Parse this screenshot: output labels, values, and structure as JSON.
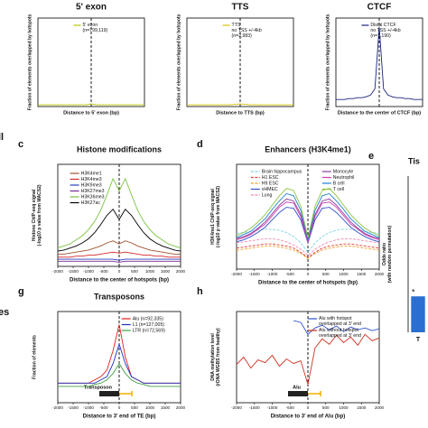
{
  "fragments": [
    "ll",
    "es"
  ],
  "chart_data": [
    {
      "type": "line",
      "title": "5' exon",
      "xlabel": "Distance to 5' exon (bp)",
      "ylabel": "Fraction of elements overlapped by hotspots",
      "x": [
        -2000,
        -1800,
        -1600,
        -1400,
        -1200,
        -1000,
        -800,
        -600,
        -400,
        -200,
        0,
        200,
        400,
        600,
        800,
        1000,
        1200,
        1400,
        1600,
        1800,
        2000
      ],
      "xlim": [
        -2000,
        2000
      ],
      "ylim": [
        0,
        1
      ],
      "vline": 0,
      "series": [
        {
          "name": "5' exon\n(n=799,119)",
          "color": "#b8c400",
          "values": [
            0.02,
            0.02,
            0.02,
            0.02,
            0.02,
            0.02,
            0.02,
            0.02,
            0.02,
            0.02,
            0.03,
            0.02,
            0.02,
            0.02,
            0.02,
            0.02,
            0.02,
            0.02,
            0.02,
            0.02,
            0.02
          ]
        }
      ]
    },
    {
      "type": "line",
      "title": "TTS",
      "xlabel": "Distance to TTS (bp)",
      "ylabel": "Fraction of elements overlapped by hotspots",
      "x": [
        -2000,
        -1800,
        -1600,
        -1400,
        -1200,
        -1000,
        -800,
        -600,
        -400,
        -200,
        0,
        200,
        400,
        600,
        800,
        1000,
        1200,
        1400,
        1600,
        1800,
        2000
      ],
      "xlim": [
        -2000,
        2000
      ],
      "ylim": [
        0,
        1
      ],
      "vline": 0,
      "series": [
        {
          "name": "TTS\nno TSS +/-4kb\n(n=2,983)",
          "color": "#d4c300",
          "values": [
            0.02,
            0.02,
            0.02,
            0.02,
            0.02,
            0.02,
            0.02,
            0.02,
            0.02,
            0.025,
            0.03,
            0.025,
            0.02,
            0.02,
            0.02,
            0.02,
            0.02,
            0.02,
            0.02,
            0.02,
            0.02
          ]
        }
      ]
    },
    {
      "type": "line",
      "title": "CTCF",
      "xlabel": "Distance to the center of CTCF (bp)",
      "ylabel": "Fraction of elements overlapped by hotspots",
      "x": [
        -2000,
        -1800,
        -1600,
        -1400,
        -1200,
        -1000,
        -800,
        -600,
        -400,
        -200,
        0,
        200,
        400,
        600,
        800,
        1000,
        1200,
        1400,
        1600,
        1800,
        2000
      ],
      "xlim": [
        -2000,
        2000
      ],
      "ylim": [
        0,
        1
      ],
      "vline": 0,
      "series": [
        {
          "name": "Distal CTCF\nno TSS +/-4kb\n(n=7,190)",
          "color": "#1a237e",
          "values": [
            0.08,
            0.08,
            0.08,
            0.09,
            0.09,
            0.1,
            0.1,
            0.11,
            0.13,
            0.2,
            0.9,
            0.2,
            0.13,
            0.11,
            0.1,
            0.1,
            0.09,
            0.09,
            0.08,
            0.08,
            0.08
          ]
        }
      ]
    },
    {
      "type": "line",
      "label": "c",
      "title": "Histone modifications",
      "xlabel": "Distance to the center of hotspots (bp)",
      "ylabel": "Histone ChIP-seq signal\n(-log10 p value from MACS2)",
      "x": [
        -2000,
        -1800,
        -1600,
        -1400,
        -1200,
        -1000,
        -800,
        -600,
        -400,
        -200,
        0,
        200,
        400,
        600,
        800,
        1000,
        1200,
        1400,
        1600,
        1800,
        2000
      ],
      "xlim": [
        -2000,
        2000
      ],
      "xticks": [
        -2000,
        -1500,
        -1000,
        -500,
        0,
        500,
        1000,
        1500,
        2000
      ],
      "ylim": [
        0,
        10
      ],
      "vline": 0,
      "series": [
        {
          "name": "H3K4me1",
          "color": "#a0522d",
          "values": [
            1.2,
            1.2,
            1.3,
            1.4,
            1.5,
            1.6,
            1.8,
            2,
            2.3,
            2.5,
            2.2,
            2.5,
            2.3,
            2,
            1.8,
            1.6,
            1.5,
            1.4,
            1.3,
            1.2,
            1.2
          ]
        },
        {
          "name": "H3K4me3",
          "color": "#d62728",
          "values": [
            0.9,
            0.9,
            0.9,
            1,
            1,
            1.1,
            1.1,
            1.2,
            1.3,
            1.4,
            1.3,
            1.4,
            1.3,
            1.2,
            1.1,
            1.1,
            1,
            1,
            0.9,
            0.9,
            0.9
          ]
        },
        {
          "name": "H3K9me3",
          "color": "#2a3fbf",
          "values": [
            0.7,
            0.7,
            0.7,
            0.7,
            0.7,
            0.7,
            0.7,
            0.7,
            0.7,
            0.7,
            0.6,
            0.7,
            0.7,
            0.7,
            0.7,
            0.7,
            0.7,
            0.7,
            0.7,
            0.7,
            0.7
          ]
        },
        {
          "name": "H3K27me3",
          "color": "#7b2d8e",
          "values": [
            0.5,
            0.5,
            0.5,
            0.5,
            0.5,
            0.5,
            0.5,
            0.5,
            0.5,
            0.5,
            0.4,
            0.5,
            0.5,
            0.5,
            0.5,
            0.5,
            0.5,
            0.5,
            0.5,
            0.5,
            0.5
          ]
        },
        {
          "name": "H3K36me3",
          "color": "#7cc242",
          "values": [
            1.8,
            2,
            2.2,
            2.6,
            3,
            3.6,
            4.4,
            5.5,
            7,
            8.6,
            7.4,
            8.6,
            7,
            5.5,
            4.4,
            3.6,
            3,
            2.6,
            2.2,
            2,
            1.8
          ]
        },
        {
          "name": "H3K27ac",
          "color": "#000000",
          "values": [
            1.5,
            1.6,
            1.8,
            2,
            2.3,
            2.7,
            3.3,
            4.1,
            5,
            5.6,
            4.6,
            5.6,
            5,
            4.1,
            3.3,
            2.7,
            2.3,
            2,
            1.8,
            1.6,
            1.5
          ]
        }
      ]
    },
    {
      "type": "line",
      "label": "d",
      "title": "Enhancers (H3K4me1)",
      "xlabel": "Distance to the center of hotspots (bp)",
      "ylabel": "H3K4me1 ChIP-seq signal\n(-log10 p value from MACS2)",
      "x": [
        -2000,
        -1800,
        -1600,
        -1400,
        -1200,
        -1000,
        -800,
        -600,
        -400,
        -200,
        0,
        200,
        400,
        600,
        800,
        1000,
        1200,
        1400,
        1600,
        1800,
        2000
      ],
      "xlim": [
        -2000,
        2000
      ],
      "xticks": [
        -2000,
        -1500,
        -1000,
        -500,
        0,
        500,
        1000,
        1500,
        2000
      ],
      "ylim": [
        0,
        10
      ],
      "vline": 0,
      "series": [
        {
          "name": "Brain hippocampus",
          "color": "#7fd3e0",
          "dash": true,
          "values": [
            3.4,
            3.5,
            3.6,
            3.7,
            3.8,
            3.8,
            3.7,
            3.5,
            3.1,
            2.5,
            1.6,
            2.5,
            3.1,
            3.5,
            3.7,
            3.8,
            3.8,
            3.7,
            3.6,
            3.5,
            3.4
          ]
        },
        {
          "name": "H1 ESC",
          "color": "#e0413a",
          "dash": true,
          "values": [
            2,
            2.1,
            2.2,
            2.3,
            2.4,
            2.4,
            2.3,
            2.2,
            2,
            1.6,
            1.1,
            1.6,
            2,
            2.2,
            2.3,
            2.4,
            2.4,
            2.3,
            2.2,
            2.1,
            2
          ]
        },
        {
          "name": "H9 ESC",
          "color": "#f0a030",
          "dash": true,
          "values": [
            1.8,
            1.9,
            2,
            2.1,
            2.2,
            2.2,
            2.1,
            2,
            1.8,
            1.5,
            1,
            1.5,
            1.8,
            2,
            2.1,
            2.2,
            2.2,
            2.1,
            2,
            1.9,
            1.8
          ]
        },
        {
          "name": "vHMEC",
          "color": "#3050c8",
          "values": [
            2.6,
            2.8,
            3.1,
            3.5,
            4,
            4.7,
            5.4,
            5.9,
            5.8,
            4.7,
            2.5,
            4.7,
            5.8,
            5.9,
            5.4,
            4.7,
            4,
            3.5,
            3.1,
            2.8,
            2.6
          ]
        },
        {
          "name": "Lung",
          "color": "#f08ab0",
          "dash": true,
          "values": [
            2.5,
            2.6,
            2.7,
            2.8,
            2.9,
            2.9,
            2.8,
            2.6,
            2.3,
            1.9,
            1.3,
            1.9,
            2.3,
            2.6,
            2.8,
            2.9,
            2.9,
            2.8,
            2.7,
            2.6,
            2.5
          ]
        },
        {
          "name": "Monocyte",
          "color": "#8a3fa0",
          "values": [
            2.9,
            3.1,
            3.4,
            3.9,
            4.5,
            5.3,
            6.1,
            6.7,
            6.5,
            5.2,
            2.7,
            5.2,
            6.5,
            6.7,
            6.1,
            5.3,
            4.5,
            3.9,
            3.4,
            3.1,
            2.9
          ]
        },
        {
          "name": "Neutrophil",
          "color": "#d040b0",
          "values": [
            2.8,
            3,
            3.3,
            3.8,
            4.3,
            5.1,
            5.9,
            6.4,
            6.3,
            5,
            2.6,
            5,
            6.3,
            6.4,
            5.9,
            5.1,
            4.3,
            3.8,
            3.3,
            3,
            2.8
          ]
        },
        {
          "name": "B cell",
          "color": "#2080d0",
          "values": [
            3,
            3.3,
            3.6,
            4.2,
            4.8,
            5.7,
            6.5,
            7.2,
            7,
            5.6,
            2.8,
            5.6,
            7,
            7.2,
            6.5,
            5.7,
            4.8,
            4.2,
            3.6,
            3.3,
            3
          ]
        },
        {
          "name": "T cell",
          "color": "#8cc63f",
          "values": [
            3.2,
            3.5,
            3.9,
            4.5,
            5.2,
            6.1,
            7,
            7.7,
            7.5,
            6,
            3,
            6,
            7.5,
            7.7,
            7,
            6.1,
            5.2,
            4.5,
            3.9,
            3.5,
            3.2
          ]
        }
      ]
    },
    {
      "type": "bar",
      "label": "e",
      "title": "Tis",
      "ylabel": "Odds ratio\n(with random permutation)",
      "categories": [
        "T"
      ],
      "values": [
        2.3
      ],
      "color": "#2a6fd1",
      "ylim": [
        0,
        10
      ],
      "annotation": "*"
    },
    {
      "type": "line",
      "label": "g",
      "title": "Transposons",
      "xlabel": "Distance to 3' end of TE (bp)",
      "ylabel": "Fraction of elements",
      "x": [
        -2000,
        -1800,
        -1600,
        -1400,
        -1200,
        -1000,
        -800,
        -600,
        -400,
        -200,
        0,
        200,
        400,
        600,
        800,
        1000,
        1200,
        1400,
        1600,
        1800,
        2000
      ],
      "xlim": [
        -2000,
        2000
      ],
      "xticks": [
        -2000,
        -1500,
        -1000,
        -500,
        0,
        500,
        1000,
        1500,
        2000
      ],
      "ylim": [
        0,
        0.14
      ],
      "vline": 0,
      "annotation": "Transposon",
      "series": [
        {
          "name": "Alu (n=92,335)",
          "color": "#e02020",
          "values": [
            0.03,
            0.03,
            0.03,
            0.03,
            0.03,
            0.03,
            0.035,
            0.04,
            0.05,
            0.08,
            0.12,
            0.07,
            0.04,
            0.035,
            0.03,
            0.03,
            0.03,
            0.03,
            0.03,
            0.03,
            0.03
          ]
        },
        {
          "name": "L1 (n=127,005)",
          "color": "#2030c0",
          "values": [
            0.03,
            0.03,
            0.03,
            0.03,
            0.03,
            0.03,
            0.03,
            0.035,
            0.04,
            0.06,
            0.09,
            0.06,
            0.04,
            0.035,
            0.03,
            0.03,
            0.03,
            0.03,
            0.03,
            0.03,
            0.03
          ]
        },
        {
          "name": "LTR (n=72,569)",
          "color": "#40a040",
          "values": [
            0.025,
            0.025,
            0.025,
            0.025,
            0.025,
            0.025,
            0.028,
            0.03,
            0.035,
            0.045,
            0.06,
            0.045,
            0.035,
            0.03,
            0.028,
            0.025,
            0.025,
            0.025,
            0.025,
            0.025,
            0.025
          ]
        }
      ]
    },
    {
      "type": "line",
      "label": "h",
      "xlabel": "Distance to 3' end of Alu (bp)",
      "ylabel": "DNA methylation level\n(rDNA WGBS from healthy)",
      "x": [
        -2000,
        -1800,
        -1600,
        -1400,
        -1200,
        -1000,
        -800,
        -600,
        -400,
        -200,
        0,
        200,
        400,
        600,
        800,
        1000,
        1200,
        1400,
        1600,
        1800,
        2000
      ],
      "xlim": [
        -2000,
        2000
      ],
      "xticks": [
        -2000,
        -1500,
        -1000,
        -500,
        0,
        500,
        1000,
        1500,
        2000
      ],
      "ylim": [
        0,
        1
      ],
      "vline": 0,
      "annotation": "Alu",
      "series": [
        {
          "name": "Alu with hotspot\noverlapped at 3' end",
          "color": "#3050d0",
          "values": [
            null,
            null,
            null,
            null,
            null,
            null,
            null,
            null,
            0.9,
            0.88,
            0.75,
            0.82,
            0.85,
            0.8,
            0.84,
            0.78,
            0.83,
            0.8,
            0.82,
            0.79,
            0.81
          ]
        },
        {
          "name": "Alu without hotspot\noverlapped at 3' end",
          "color": "#d03020",
          "values": [
            0.42,
            0.5,
            0.38,
            0.47,
            0.44,
            0.52,
            0.4,
            0.48,
            0.43,
            0.46,
            0.2,
            0.6,
            0.7,
            0.64,
            0.74,
            0.66,
            0.72,
            0.63,
            0.75,
            0.68,
            0.71
          ]
        }
      ]
    }
  ]
}
